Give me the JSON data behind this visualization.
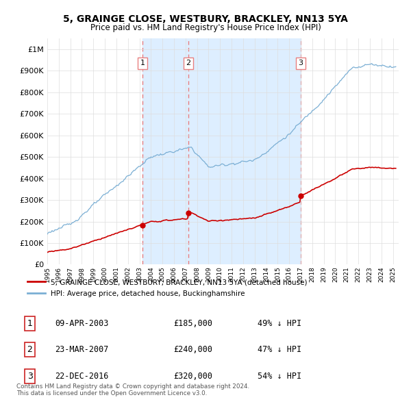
{
  "title": "5, GRAINGE CLOSE, WESTBURY, BRACKLEY, NN13 5YA",
  "subtitle": "Price paid vs. HM Land Registry's House Price Index (HPI)",
  "ytick_values": [
    0,
    100000,
    200000,
    300000,
    400000,
    500000,
    600000,
    700000,
    800000,
    900000,
    1000000
  ],
  "ylim": [
    0,
    1050000
  ],
  "xlim_start": 1995.0,
  "xlim_end": 2025.5,
  "transactions": [
    {
      "date": 2003.27,
      "price": 185000,
      "label": "1"
    },
    {
      "date": 2007.23,
      "price": 240000,
      "label": "2"
    },
    {
      "date": 2016.98,
      "price": 320000,
      "label": "3"
    }
  ],
  "transaction_info": [
    {
      "num": "1",
      "date": "09-APR-2003",
      "price": "£185,000",
      "hpi": "49% ↓ HPI"
    },
    {
      "num": "2",
      "date": "23-MAR-2007",
      "price": "£240,000",
      "hpi": "47% ↓ HPI"
    },
    {
      "num": "3",
      "date": "22-DEC-2016",
      "price": "£320,000",
      "hpi": "54% ↓ HPI"
    }
  ],
  "legend_house_label": "5, GRAINGE CLOSE, WESTBURY, BRACKLEY, NN13 5YA (detached house)",
  "legend_hpi_label": "HPI: Average price, detached house, Buckinghamshire",
  "footer": "Contains HM Land Registry data © Crown copyright and database right 2024.\nThis data is licensed under the Open Government Licence v3.0.",
  "line_color_house": "#cc0000",
  "line_color_hpi": "#7bafd4",
  "vline_color": "#e88080",
  "shade_color": "#ddeeff",
  "background_color": "#ffffff",
  "grid_color": "#dddddd",
  "shade_alpha": 0.5
}
